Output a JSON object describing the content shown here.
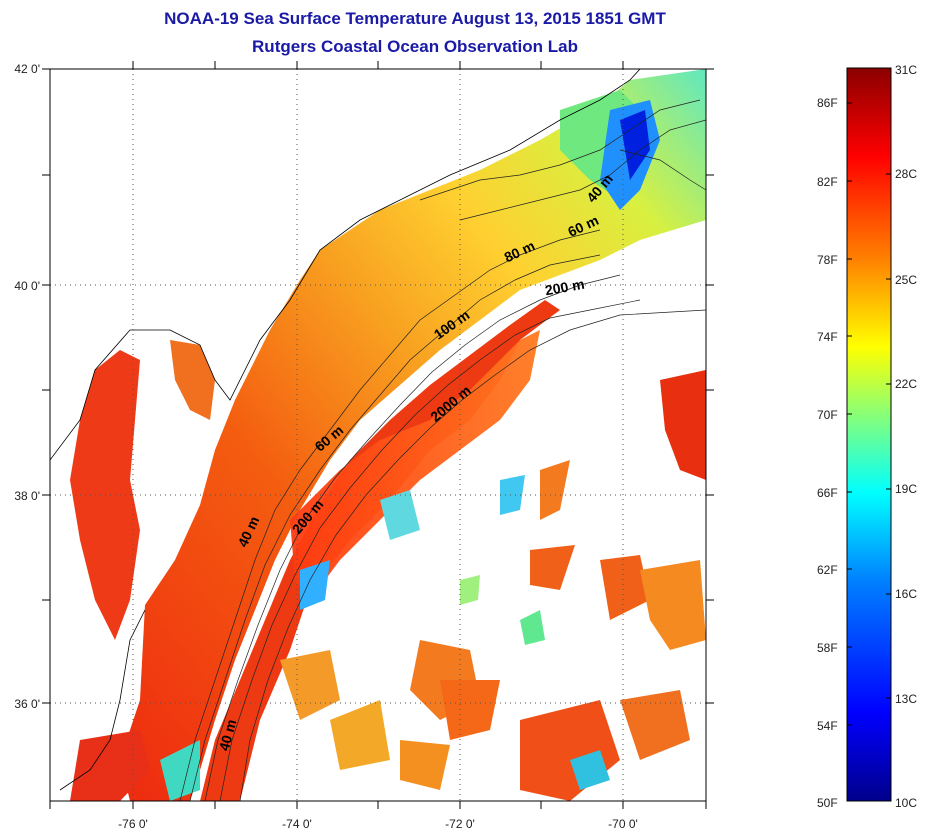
{
  "title": "NOAA-19 Sea Surface Temperature August 13, 2015 1851 GMT",
  "subtitle": "Rutgers Coastal Ocean Observation Lab",
  "map": {
    "latitude_labels": [
      "42 0'",
      "40 0'",
      "38 0'",
      "36 0'"
    ],
    "longitude_labels": [
      "-76 0'",
      "-74 0'",
      "-72 0'",
      "-70 0'"
    ],
    "grid": "dotted",
    "isobath_labels": [
      "40 m",
      "60 m",
      "80 m",
      "200 m",
      "100 m",
      "2000 m",
      "60 m",
      "200 m",
      "40 m",
      "40 m"
    ]
  },
  "colorbar": {
    "fahrenheit_labels": [
      "86F",
      "82F",
      "78F",
      "74F",
      "70F",
      "66F",
      "62F",
      "58F",
      "54F",
      "50F"
    ],
    "celsius_labels": [
      "31C",
      "28C",
      "25C",
      "22C",
      "19C",
      "16C",
      "13C",
      "10C"
    ],
    "range_celsius": [
      10,
      31
    ],
    "colors": [
      "#00008b",
      "#0000ff",
      "#0080ff",
      "#00ffff",
      "#80ff80",
      "#ffff00",
      "#ff8000",
      "#ff0000",
      "#8b0000"
    ]
  },
  "palette": {
    "land": "#ffffff",
    "title_color": "#1a1aa6"
  }
}
